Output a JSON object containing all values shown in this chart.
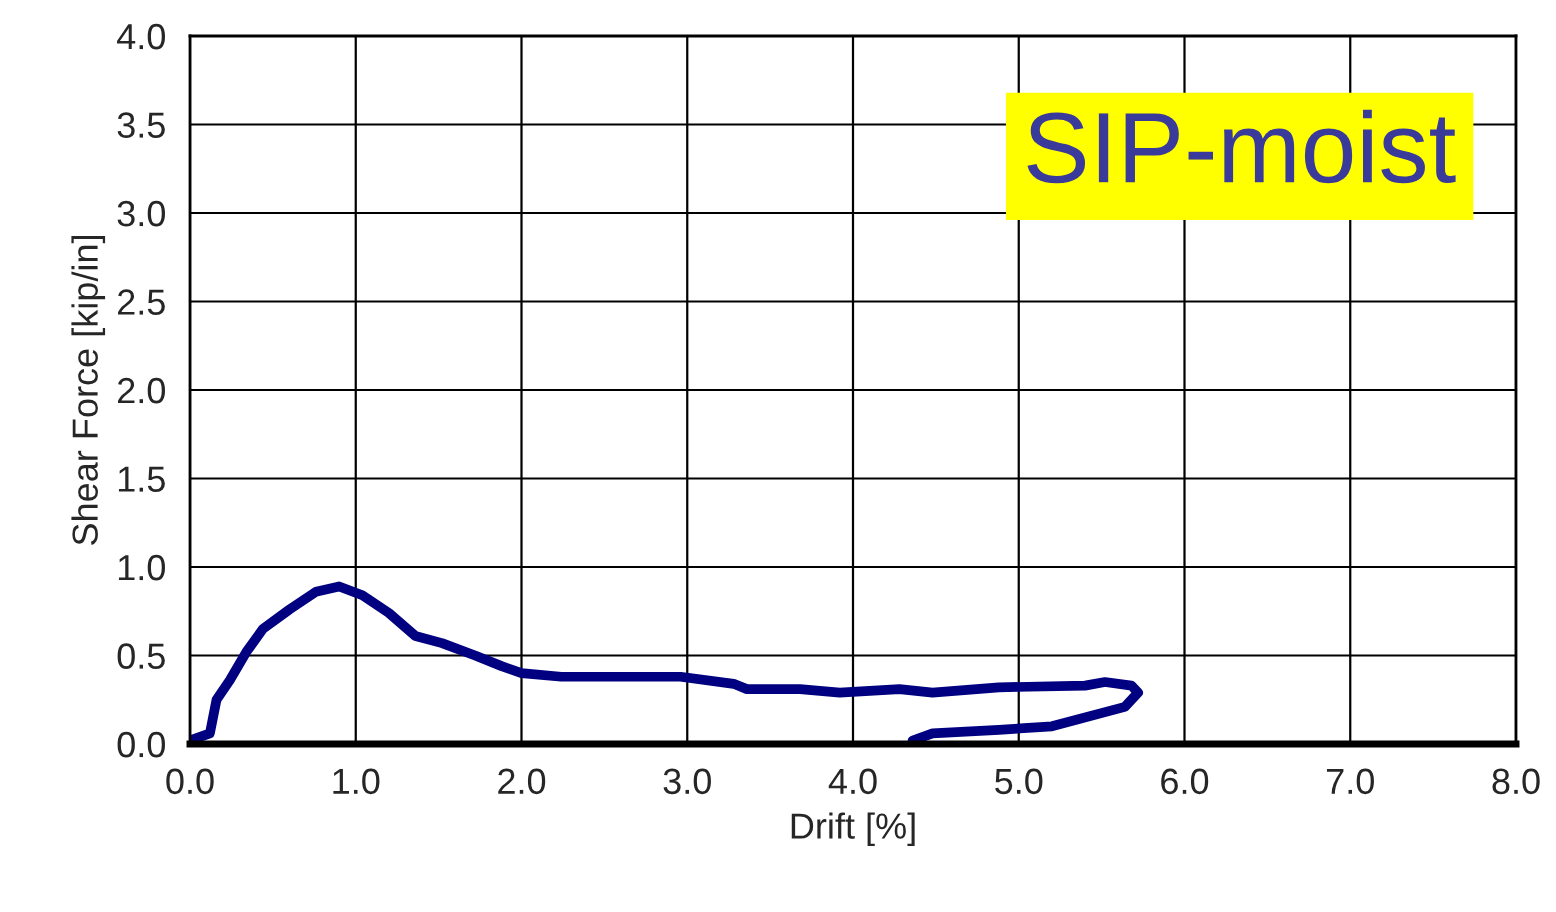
{
  "chart_data": {
    "type": "line",
    "xlabel": "Drift [%]",
    "ylabel": "Shear Force [kip/in]",
    "annotations": [
      "SIP-moist"
    ],
    "series": [
      {
        "color": "#000080",
        "x": [
          0.0,
          0.12,
          0.16,
          0.24,
          0.34,
          0.44,
          0.6,
          0.76,
          0.9,
          1.04,
          1.2,
          1.36,
          1.52,
          1.72,
          1.88,
          2.0,
          2.24,
          2.64,
          2.96,
          3.28,
          3.36,
          3.68,
          3.92,
          4.28,
          4.48,
          4.88,
          5.4,
          5.52,
          5.68,
          5.72,
          5.64,
          5.2,
          4.88,
          4.48,
          4.36
        ],
        "values": [
          0.02,
          0.06,
          0.25,
          0.36,
          0.52,
          0.65,
          0.76,
          0.86,
          0.89,
          0.84,
          0.74,
          0.61,
          0.57,
          0.5,
          0.44,
          0.4,
          0.38,
          0.38,
          0.38,
          0.34,
          0.31,
          0.31,
          0.29,
          0.31,
          0.29,
          0.32,
          0.33,
          0.35,
          0.33,
          0.29,
          0.21,
          0.1,
          0.08,
          0.06,
          0.02
        ]
      }
    ],
    "xlim": [
      0,
      8
    ],
    "ylim": [
      0,
      4
    ],
    "xticks": [
      {
        "value": 0,
        "label": "0.0"
      },
      {
        "value": 1,
        "label": "1.0"
      },
      {
        "value": 2,
        "label": "2.0"
      },
      {
        "value": 3,
        "label": "3.0"
      },
      {
        "value": 4,
        "label": "4.0"
      },
      {
        "value": 5,
        "label": "5.0"
      },
      {
        "value": 6,
        "label": "6.0"
      },
      {
        "value": 7,
        "label": "7.0"
      },
      {
        "value": 8,
        "label": "8.0"
      }
    ],
    "yticks": [
      {
        "value": 0,
        "label": "0.0"
      },
      {
        "value": 0.5,
        "label": "0.5"
      },
      {
        "value": 1,
        "label": "1.0"
      },
      {
        "value": 1.5,
        "label": "1.5"
      },
      {
        "value": 2,
        "label": "2.0"
      },
      {
        "value": 2.5,
        "label": "2.5"
      },
      {
        "value": 3,
        "label": "3.0"
      },
      {
        "value": 3.5,
        "label": "3.5"
      },
      {
        "value": 4,
        "label": "4.0"
      }
    ],
    "grid": true,
    "marker": "none",
    "line_style": "solid"
  }
}
